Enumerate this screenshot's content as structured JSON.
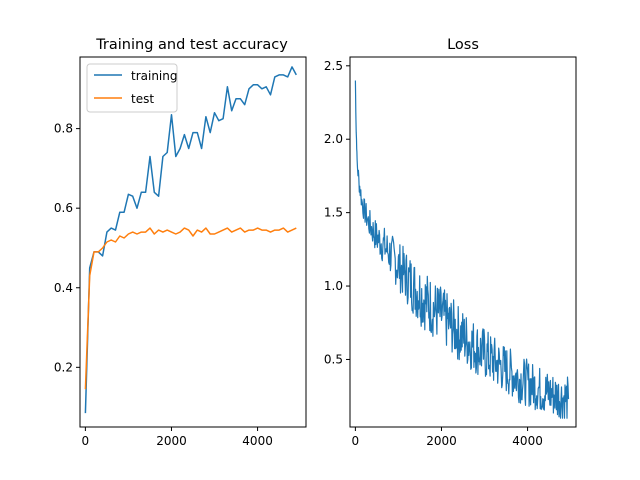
{
  "chart_data": [
    {
      "type": "line",
      "title": "Training and test accuracy",
      "xlabel": "",
      "ylabel": "",
      "xlim": [
        -125,
        5125
      ],
      "ylim": [
        0.05,
        0.98
      ],
      "xticks": [
        0,
        2000,
        4000
      ],
      "yticks": [
        0.2,
        0.4,
        0.6,
        0.8
      ],
      "legend_position": "top-left",
      "series": [
        {
          "name": "training",
          "color": "#1f77b4",
          "x": [
            0,
            100,
            200,
            300,
            400,
            500,
            600,
            700,
            800,
            900,
            1000,
            1100,
            1200,
            1300,
            1400,
            1500,
            1600,
            1700,
            1800,
            1900,
            2000,
            2100,
            2200,
            2300,
            2400,
            2500,
            2600,
            2700,
            2800,
            2900,
            3000,
            3100,
            3200,
            3300,
            3400,
            3500,
            3600,
            3700,
            3800,
            3900,
            4000,
            4100,
            4200,
            4300,
            4400,
            4500,
            4600,
            4700,
            4800,
            4900
          ],
          "y": [
            0.085,
            0.45,
            0.49,
            0.49,
            0.48,
            0.54,
            0.55,
            0.545,
            0.59,
            0.59,
            0.635,
            0.63,
            0.6,
            0.64,
            0.64,
            0.73,
            0.64,
            0.63,
            0.73,
            0.74,
            0.835,
            0.73,
            0.75,
            0.785,
            0.75,
            0.79,
            0.79,
            0.75,
            0.83,
            0.79,
            0.84,
            0.82,
            0.825,
            0.905,
            0.845,
            0.875,
            0.875,
            0.86,
            0.9,
            0.91,
            0.91,
            0.9,
            0.905,
            0.885,
            0.93,
            0.935,
            0.935,
            0.93,
            0.955,
            0.935
          ]
        },
        {
          "name": "test",
          "color": "#ff7f0e",
          "x": [
            0,
            100,
            200,
            300,
            400,
            500,
            600,
            700,
            800,
            900,
            1000,
            1100,
            1200,
            1300,
            1400,
            1500,
            1600,
            1700,
            1800,
            1900,
            2000,
            2100,
            2200,
            2300,
            2400,
            2500,
            2600,
            2700,
            2800,
            2900,
            3000,
            3100,
            3200,
            3300,
            3400,
            3500,
            3600,
            3700,
            3800,
            3900,
            4000,
            4100,
            4200,
            4300,
            4400,
            4500,
            4600,
            4700,
            4800,
            4900
          ],
          "y": [
            0.145,
            0.43,
            0.49,
            0.49,
            0.5,
            0.515,
            0.52,
            0.515,
            0.53,
            0.525,
            0.535,
            0.54,
            0.535,
            0.54,
            0.54,
            0.55,
            0.535,
            0.545,
            0.54,
            0.545,
            0.54,
            0.535,
            0.54,
            0.55,
            0.545,
            0.53,
            0.545,
            0.54,
            0.55,
            0.535,
            0.535,
            0.54,
            0.545,
            0.55,
            0.54,
            0.545,
            0.55,
            0.54,
            0.545,
            0.545,
            0.55,
            0.545,
            0.545,
            0.54,
            0.545,
            0.545,
            0.55,
            0.54,
            0.545,
            0.55
          ]
        }
      ]
    },
    {
      "type": "line",
      "title": "Loss",
      "xlabel": "",
      "ylabel": "",
      "xlim": [
        -125,
        5125
      ],
      "ylim": [
        0.04,
        2.56
      ],
      "xticks": [
        0,
        2000,
        4000
      ],
      "yticks": [
        0.5,
        1.0,
        1.5,
        2.0,
        2.5
      ],
      "series": [
        {
          "color": "#1f77b4",
          "x": [
            0,
            10,
            20,
            30,
            40,
            60,
            80,
            100,
            150,
            200,
            300,
            400,
            500,
            600,
            700,
            800,
            900,
            1000,
            1200,
            1400,
            1600,
            1800,
            2000,
            2200,
            2400,
            2600,
            2800,
            3000,
            3200,
            3400,
            3600,
            3800,
            4000,
            4200,
            4400,
            4600,
            4800,
            4950
          ],
          "y": [
            2.4,
            2.2,
            2.05,
            1.95,
            1.85,
            1.78,
            1.72,
            1.68,
            1.58,
            1.52,
            1.44,
            1.38,
            1.33,
            1.3,
            1.26,
            1.22,
            1.18,
            1.14,
            1.06,
            0.98,
            0.91,
            0.85,
            0.8,
            0.74,
            0.68,
            0.63,
            0.58,
            0.54,
            0.49,
            0.45,
            0.41,
            0.37,
            0.34,
            0.31,
            0.28,
            0.26,
            0.24,
            0.23
          ]
        }
      ]
    }
  ]
}
